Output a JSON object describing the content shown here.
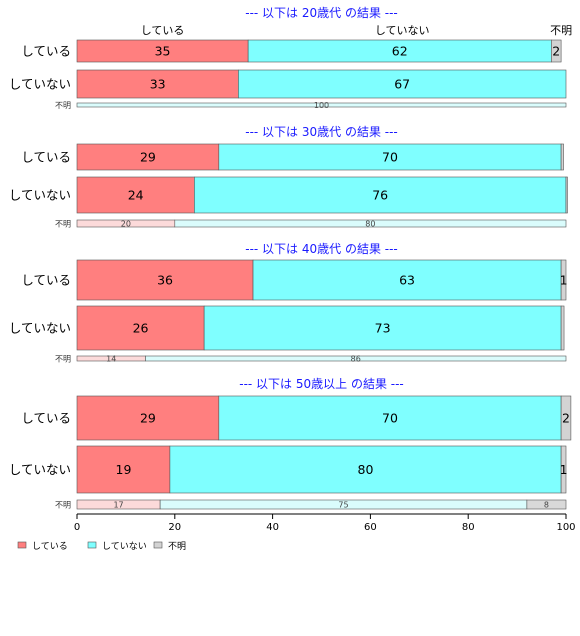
{
  "colors": {
    "している": "#ff7f7f",
    "していない": "#7fffff",
    "不明": "#d3d3d3"
  },
  "column_headers": [
    {
      "label": "している",
      "value": 17.5
    },
    {
      "label": "していない",
      "value": 66.5
    },
    {
      "label": "不明",
      "value": 99
    }
  ],
  "chart_data": {
    "type": "bar",
    "orientation": "horizontal-stacked",
    "x_ticks": [
      0,
      20,
      40,
      60,
      80,
      100
    ],
    "xlim": [
      0,
      100
    ],
    "legend": {
      "placement": "bottom-left",
      "items": [
        "している",
        "していない",
        "不明"
      ]
    },
    "panels": [
      {
        "title": "--- 以下は 20歳代 の結果 ---",
        "rows": [
          {
            "label": "している",
            "values": [
              35,
              62,
              2
            ],
            "labels": [
              "35",
              "62",
              "2"
            ]
          },
          {
            "label": "していない",
            "values": [
              33,
              67,
              0
            ],
            "labels": [
              "33",
              "67",
              ""
            ]
          }
        ],
        "unknown": {
          "label": "不明",
          "values": [
            0,
            100,
            0
          ],
          "labels": [
            "",
            "100",
            ""
          ]
        }
      },
      {
        "title": "--- 以下は 30歳代 の結果 ---",
        "rows": [
          {
            "label": "している",
            "values": [
              29,
              70,
              0.5
            ],
            "labels": [
              "29",
              "70",
              ""
            ]
          },
          {
            "label": "していない",
            "values": [
              24,
              76,
              0.3
            ],
            "labels": [
              "24",
              "76",
              ""
            ]
          }
        ],
        "unknown": {
          "label": "不明",
          "values": [
            20,
            80,
            0
          ],
          "labels": [
            "20",
            "80",
            ""
          ]
        }
      },
      {
        "title": "--- 以下は 40歳代 の結果 ---",
        "rows": [
          {
            "label": "している",
            "values": [
              36,
              63,
              1
            ],
            "labels": [
              "36",
              "63",
              "1"
            ]
          },
          {
            "label": "していない",
            "values": [
              26,
              73,
              0.6
            ],
            "labels": [
              "26",
              "73",
              ""
            ]
          }
        ],
        "unknown": {
          "label": "不明",
          "values": [
            14,
            86,
            0
          ],
          "labels": [
            "14",
            "86",
            ""
          ]
        }
      },
      {
        "title": "--- 以下は 50歳以上 の結果 ---",
        "rows": [
          {
            "label": "している",
            "values": [
              29,
              70,
              2
            ],
            "labels": [
              "29",
              "70",
              "2"
            ]
          },
          {
            "label": "していない",
            "values": [
              19,
              80,
              1
            ],
            "labels": [
              "19",
              "80",
              "1"
            ]
          }
        ],
        "unknown": {
          "label": "不明",
          "values": [
            17,
            75,
            8
          ],
          "labels": [
            "17",
            "75",
            "8"
          ]
        }
      }
    ]
  }
}
